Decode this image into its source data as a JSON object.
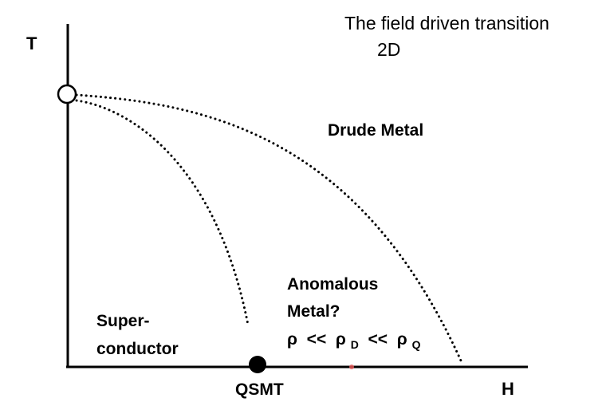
{
  "title": {
    "line1": "The field driven transition",
    "line2": "2D"
  },
  "axes": {
    "y_label": "T",
    "x_label": "H"
  },
  "regions": {
    "drude_metal": "Drude Metal",
    "anomalous_line1": "Anomalous",
    "anomalous_line2": "Metal?",
    "relation": {
      "rho1": "ρ",
      "op1": " << ",
      "rho2": "ρ",
      "sub2": "D",
      "op2": " << ",
      "rho3": "ρ",
      "sub3": "Q"
    },
    "super_line1": "Super-",
    "super_line2": "conductor"
  },
  "points": {
    "critical_point_label": "QSMT"
  },
  "colors": {
    "ink": "#000000",
    "background": "#ffffff",
    "open_marker_fill": "#ffffff",
    "small_marker": "#e85a5a"
  }
}
